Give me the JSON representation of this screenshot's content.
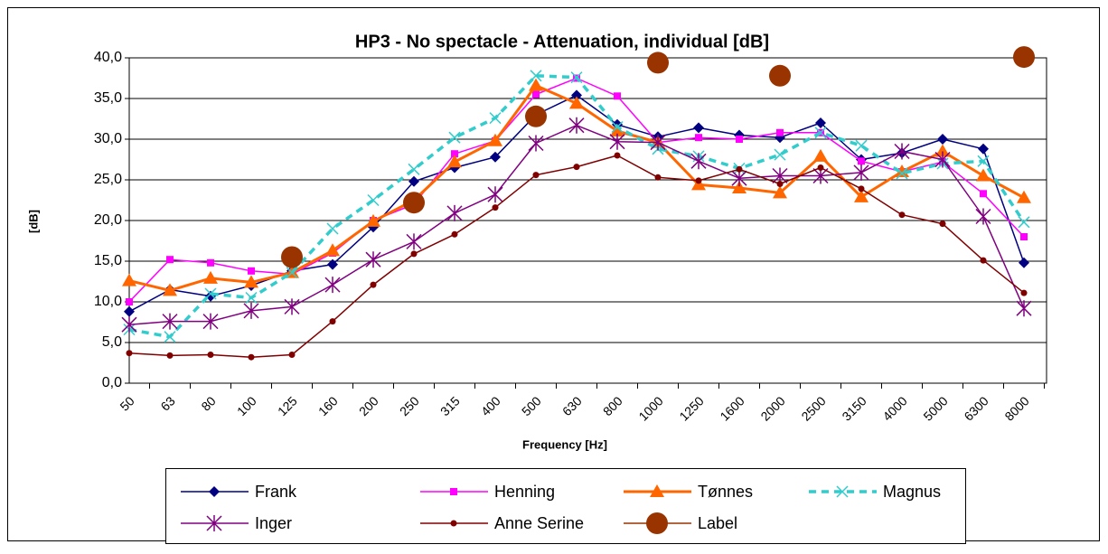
{
  "chart_data": {
    "type": "line",
    "title": "HP3 - No spectacle - Attenuation, individual [dB]",
    "x_label": "Frequency [Hz]",
    "y_label": "[dB]",
    "categories": [
      "50",
      "63",
      "80",
      "100",
      "125",
      "160",
      "200",
      "250",
      "315",
      "400",
      "500",
      "630",
      "800",
      "1000",
      "1250",
      "1600",
      "2000",
      "2500",
      "3150",
      "4000",
      "5000",
      "6300",
      "8000"
    ],
    "ylim": [
      0,
      40
    ],
    "yticks": [
      {
        "value": 0,
        "label": "0,0"
      },
      {
        "value": 5,
        "label": "5,0"
      },
      {
        "value": 10,
        "label": "10,0"
      },
      {
        "value": 15,
        "label": "15,0"
      },
      {
        "value": 20,
        "label": "20,0"
      },
      {
        "value": 25,
        "label": "25,0"
      },
      {
        "value": 30,
        "label": "30,0"
      },
      {
        "value": 35,
        "label": "35,0"
      },
      {
        "value": 40,
        "label": "40,0"
      }
    ],
    "grid": true,
    "legend": "bottom",
    "series": [
      {
        "name": "Frank",
        "color": "#000080",
        "marker": "diamond",
        "dashed": false,
        "line_width": 1.5,
        "values": [
          8.8,
          11.5,
          10.7,
          12.0,
          13.8,
          14.6,
          19.2,
          24.8,
          26.5,
          27.8,
          33.0,
          35.4,
          31.8,
          30.3,
          31.4,
          30.5,
          30.2,
          32.0,
          27.5,
          28.3,
          30.0,
          28.8,
          14.8
        ]
      },
      {
        "name": "Henning",
        "color": "#ff00ff",
        "marker": "square",
        "dashed": false,
        "line_width": 1.5,
        "values": [
          10.0,
          15.2,
          14.8,
          13.8,
          13.4,
          16.0,
          20.0,
          22.0,
          28.2,
          29.8,
          35.5,
          37.5,
          35.3,
          29.6,
          30.2,
          30.0,
          30.8,
          30.8,
          27.3,
          26.0,
          27.2,
          23.3,
          18.0
        ]
      },
      {
        "name": "Tønnes",
        "color": "#ff6600",
        "marker": "triangle",
        "dashed": false,
        "line_width": 3,
        "values": [
          12.6,
          11.4,
          12.9,
          12.4,
          13.6,
          16.3,
          19.9,
          22.5,
          27.2,
          29.8,
          36.6,
          34.4,
          31.0,
          29.6,
          24.4,
          24.0,
          23.4,
          27.9,
          22.9,
          26.0,
          28.5,
          25.5,
          22.8
        ]
      },
      {
        "name": "Magnus",
        "color": "#33cccc",
        "marker": "x",
        "dashed": true,
        "line_width": 3.5,
        "values": [
          6.6,
          5.7,
          11.0,
          10.5,
          13.6,
          19.0,
          22.5,
          26.3,
          30.2,
          32.6,
          37.8,
          37.6,
          31.5,
          28.8,
          27.9,
          26.4,
          28.1,
          30.8,
          29.2,
          25.8,
          27.0,
          27.3,
          19.8
        ]
      },
      {
        "name": "Inger",
        "color": "#800080",
        "marker": "asterisk",
        "dashed": false,
        "line_width": 1.5,
        "values": [
          7.2,
          7.6,
          7.6,
          8.9,
          9.4,
          12.1,
          15.2,
          17.4,
          20.9,
          23.2,
          29.5,
          31.7,
          29.7,
          29.6,
          27.3,
          25.2,
          25.5,
          25.5,
          25.9,
          28.5,
          27.5,
          20.5,
          9.2
        ]
      },
      {
        "name": "Anne Serine",
        "color": "#800000",
        "marker": "dot",
        "dashed": false,
        "line_width": 1.5,
        "values": [
          3.7,
          3.4,
          3.5,
          3.2,
          3.5,
          7.6,
          12.1,
          15.9,
          18.3,
          21.6,
          25.6,
          26.6,
          28.0,
          25.3,
          24.9,
          26.3,
          24.5,
          26.5,
          23.9,
          20.7,
          19.6,
          15.1,
          11.1
        ]
      },
      {
        "name": "Label",
        "color": "#993300",
        "marker": "circle",
        "dashed": false,
        "line_width": 1.5,
        "values": [
          null,
          null,
          null,
          null,
          15.5,
          null,
          null,
          22.2,
          null,
          null,
          32.8,
          null,
          null,
          39.4,
          null,
          null,
          37.8,
          null,
          null,
          null,
          null,
          null,
          40.1
        ]
      }
    ]
  }
}
